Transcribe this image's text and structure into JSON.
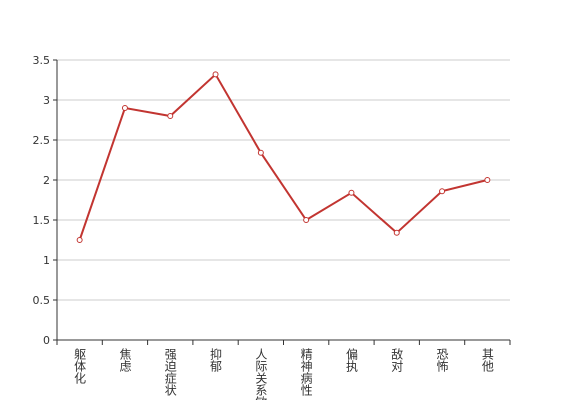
{
  "chart_data": {
    "type": "line",
    "categories": [
      "躯体化",
      "焦虑",
      "强迫症状",
      "抑郁",
      "人际关系敏感",
      "精神病性",
      "偏执",
      "敌对",
      "恐怖",
      "其他"
    ],
    "series": [
      {
        "color": "#c23531",
        "values": [
          1.25,
          2.9,
          2.8,
          3.32,
          2.34,
          1.5,
          1.84,
          1.34,
          1.86,
          2.0
        ]
      }
    ],
    "ylim": [
      0,
      3.5
    ],
    "yticks": [
      0,
      0.5,
      1,
      1.5,
      2,
      2.5,
      3,
      3.5
    ],
    "grid": true
  }
}
